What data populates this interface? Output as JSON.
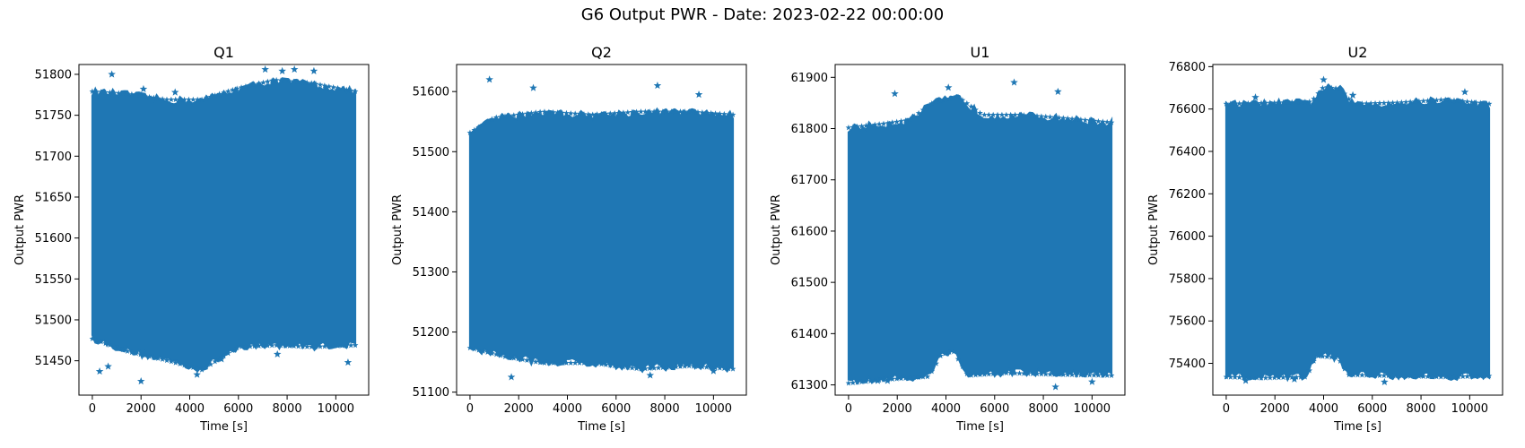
{
  "figure": {
    "suptitle": "G6 Output PWR - Date: 2023-02-22 00:00:00"
  },
  "chart_data": [
    {
      "type": "scatter",
      "title": "Q1",
      "xlabel": "Time [s]",
      "ylabel": "Output PWR",
      "marker": "star",
      "color": "#1f77b4",
      "xlim": [
        -550,
        11350
      ],
      "ylim": [
        51408,
        51812
      ],
      "xticks": [
        0,
        2000,
        4000,
        6000,
        8000,
        10000
      ],
      "yticks": [
        51450,
        51500,
        51550,
        51600,
        51650,
        51700,
        51750,
        51800
      ],
      "time_range": [
        0,
        10800
      ],
      "band_upper": [
        [
          0,
          51778
        ],
        [
          1500,
          51775
        ],
        [
          3000,
          51768
        ],
        [
          4500,
          51768
        ],
        [
          6000,
          51782
        ],
        [
          7500,
          51792
        ],
        [
          9000,
          51788
        ],
        [
          10800,
          51778
        ]
      ],
      "band_lower": [
        [
          0,
          51478
        ],
        [
          1500,
          51462
        ],
        [
          3000,
          51452
        ],
        [
          4500,
          51440
        ],
        [
          6000,
          51468
        ],
        [
          7500,
          51470
        ],
        [
          9000,
          51468
        ],
        [
          10800,
          51470
        ]
      ],
      "outliers": [
        [
          800,
          51800
        ],
        [
          2100,
          51782
        ],
        [
          3400,
          51778
        ],
        [
          7100,
          51806
        ],
        [
          7800,
          51804
        ],
        [
          8300,
          51806
        ],
        [
          9100,
          51804
        ],
        [
          300,
          51437
        ],
        [
          650,
          51443
        ],
        [
          2000,
          51425
        ],
        [
          4300,
          51433
        ],
        [
          5300,
          51452
        ],
        [
          7600,
          51458
        ],
        [
          10500,
          51448
        ]
      ]
    },
    {
      "type": "scatter",
      "title": "Q2",
      "xlabel": "Time [s]",
      "ylabel": "Output PWR",
      "marker": "star",
      "color": "#1f77b4",
      "xlim": [
        -550,
        11350
      ],
      "ylim": [
        51095,
        51645
      ],
      "xticks": [
        0,
        2000,
        4000,
        6000,
        8000,
        10000
      ],
      "yticks": [
        51100,
        51200,
        51300,
        51400,
        51500,
        51600
      ],
      "time_range": [
        0,
        10800
      ],
      "band_upper": [
        [
          0,
          51530
        ],
        [
          1000,
          51555
        ],
        [
          2000,
          51560
        ],
        [
          3000,
          51565
        ],
        [
          5000,
          51560
        ],
        [
          7000,
          51565
        ],
        [
          9000,
          51565
        ],
        [
          10800,
          51560
        ]
      ],
      "band_lower": [
        [
          0,
          51175
        ],
        [
          1500,
          51160
        ],
        [
          3000,
          51150
        ],
        [
          5000,
          51150
        ],
        [
          7000,
          51140
        ],
        [
          9000,
          51145
        ],
        [
          10800,
          51140
        ]
      ],
      "outliers": [
        [
          800,
          51620
        ],
        [
          2600,
          51606
        ],
        [
          7700,
          51610
        ],
        [
          9400,
          51595
        ],
        [
          1700,
          51125
        ],
        [
          7400,
          51128
        ],
        [
          10000,
          51135
        ]
      ]
    },
    {
      "type": "scatter",
      "title": "U1",
      "xlabel": "Time [s]",
      "ylabel": "Output PWR",
      "marker": "star",
      "color": "#1f77b4",
      "xlim": [
        -550,
        11350
      ],
      "ylim": [
        61280,
        61925
      ],
      "xticks": [
        0,
        2000,
        4000,
        6000,
        8000,
        10000
      ],
      "yticks": [
        61300,
        61400,
        61500,
        61600,
        61700,
        61800,
        61900
      ],
      "time_range": [
        0,
        10800
      ],
      "band_upper": [
        [
          0,
          61800
        ],
        [
          1500,
          61808
        ],
        [
          2500,
          61815
        ],
        [
          3500,
          61850
        ],
        [
          4500,
          61860
        ],
        [
          5500,
          61825
        ],
        [
          7000,
          61825
        ],
        [
          8500,
          61820
        ],
        [
          10800,
          61810
        ]
      ],
      "band_lower": [
        [
          0,
          61305
        ],
        [
          1500,
          61312
        ],
        [
          3300,
          61318
        ],
        [
          3800,
          61360
        ],
        [
          4300,
          61368
        ],
        [
          4900,
          61320
        ],
        [
          6500,
          61325
        ],
        [
          8500,
          61322
        ],
        [
          10800,
          61320
        ]
      ],
      "outliers": [
        [
          1900,
          61868
        ],
        [
          4100,
          61880
        ],
        [
          6800,
          61890
        ],
        [
          8600,
          61872
        ],
        [
          1200,
          61308
        ],
        [
          1600,
          61308
        ],
        [
          8500,
          61296
        ],
        [
          10000,
          61306
        ]
      ]
    },
    {
      "type": "scatter",
      "title": "U2",
      "xlabel": "Time [s]",
      "ylabel": "Output PWR",
      "marker": "star",
      "color": "#1f77b4",
      "xlim": [
        -550,
        11350
      ],
      "ylim": [
        75250,
        76810
      ],
      "xticks": [
        0,
        2000,
        4000,
        6000,
        8000,
        10000
      ],
      "yticks": [
        75400,
        75600,
        75800,
        76000,
        76200,
        76400,
        76600,
        76800
      ],
      "time_range": [
        0,
        10800
      ],
      "band_upper": [
        [
          0,
          76620
        ],
        [
          2000,
          76625
        ],
        [
          3500,
          76630
        ],
        [
          4000,
          76700
        ],
        [
          4700,
          76690
        ],
        [
          5200,
          76620
        ],
        [
          7000,
          76625
        ],
        [
          9000,
          76640
        ],
        [
          10800,
          76620
        ]
      ],
      "band_lower": [
        [
          0,
          75340
        ],
        [
          1500,
          75335
        ],
        [
          3300,
          75340
        ],
        [
          3700,
          75440
        ],
        [
          4600,
          75430
        ],
        [
          5000,
          75350
        ],
        [
          7000,
          75345
        ],
        [
          9000,
          75340
        ],
        [
          10800,
          75345
        ]
      ],
      "outliers": [
        [
          4000,
          76738
        ],
        [
          5200,
          76665
        ],
        [
          1200,
          76655
        ],
        [
          9800,
          76680
        ],
        [
          800,
          75318
        ],
        [
          6500,
          75312
        ],
        [
          2800,
          75325
        ]
      ]
    }
  ]
}
